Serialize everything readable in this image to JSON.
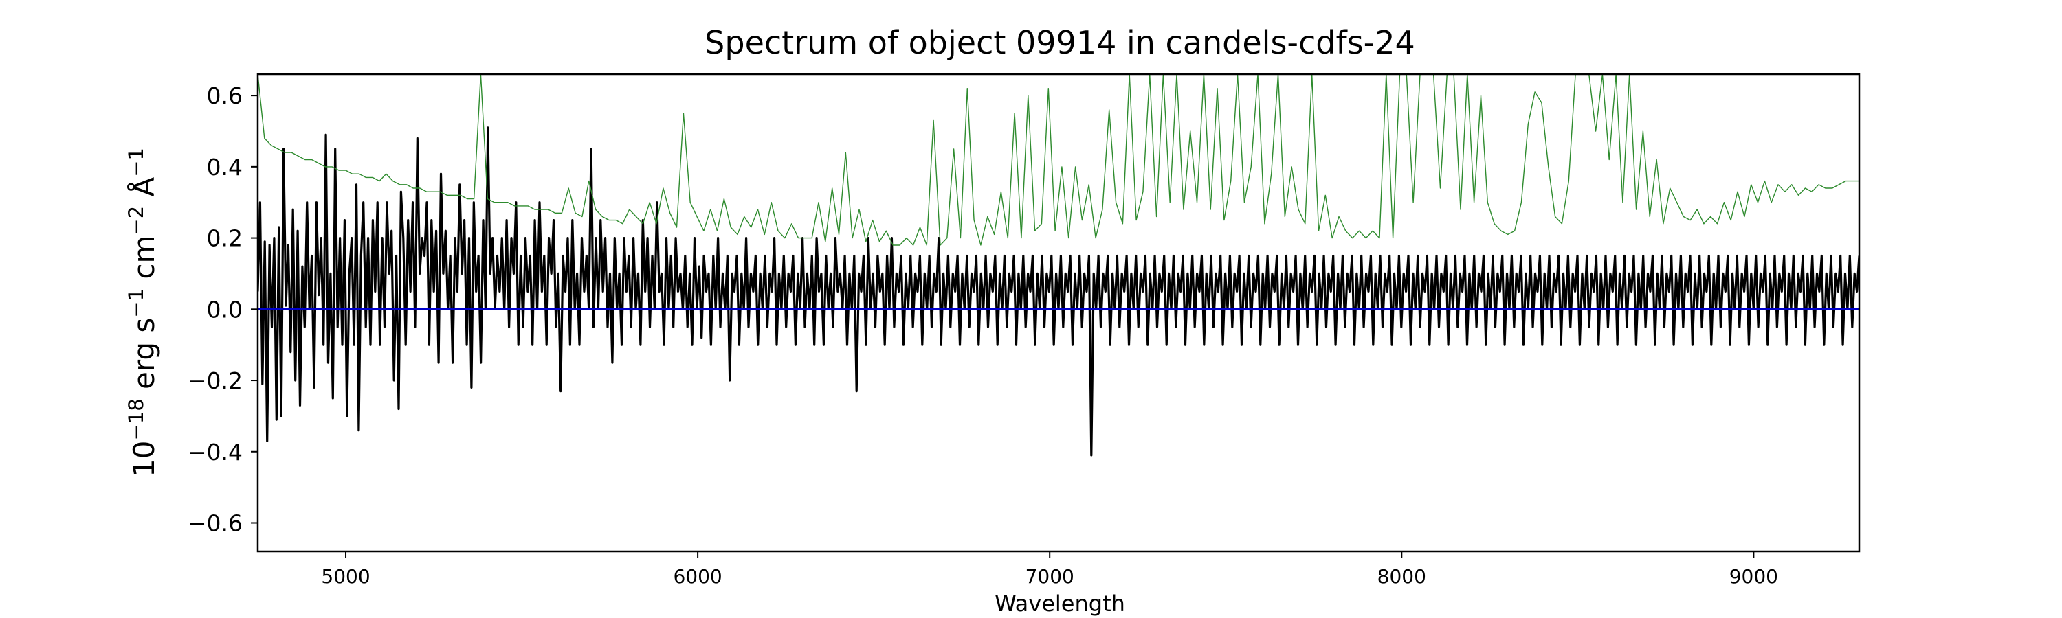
{
  "chart_data": {
    "type": "line",
    "title": "Spectrum of object 09914 in candels-cdfs-24",
    "xlabel": "Wavelength",
    "ylabel": {
      "base": "10",
      "base_exp": "−18",
      "erg": " erg s",
      "s_exp": "−1",
      "cm": " cm",
      "cm_exp": "−2",
      "ang": " Å",
      "ang_exp": "−1"
    },
    "xlim": [
      4750,
      9300
    ],
    "ylim": [
      -0.68,
      0.66
    ],
    "x_ticks": [
      {
        "value": 5000,
        "label": "5000"
      },
      {
        "value": 6000,
        "label": "6000"
      },
      {
        "value": 7000,
        "label": "7000"
      },
      {
        "value": 8000,
        "label": "8000"
      },
      {
        "value": 9000,
        "label": "9000"
      }
    ],
    "y_ticks": [
      {
        "value": 0.6,
        "label": "0.6"
      },
      {
        "value": 0.4,
        "label": "0.4"
      },
      {
        "value": 0.2,
        "label": "0.2"
      },
      {
        "value": 0.0,
        "label": "0.0"
      },
      {
        "value": -0.2,
        "label": "−0.2"
      },
      {
        "value": -0.4,
        "label": "−0.4"
      },
      {
        "value": -0.6,
        "label": "−0.6"
      }
    ],
    "grid": false,
    "series": [
      {
        "role": "flux",
        "color": "#000000",
        "x_start": 4750,
        "x_end": 9300,
        "points": 680,
        "y": [
          0.05,
          0.3,
          -0.21,
          0.19,
          -0.37,
          0.18,
          -0.05,
          0.2,
          -0.31,
          0.23,
          -0.3,
          0.45,
          0.01,
          0.18,
          -0.12,
          0.28,
          -0.2,
          0.22,
          -0.27,
          0.12,
          -0.05,
          0.3,
          0.0,
          0.15,
          -0.22,
          0.3,
          0.04,
          0.2,
          -0.1,
          0.49,
          -0.15,
          0.1,
          -0.25,
          0.45,
          -0.05,
          0.2,
          -0.1,
          0.25,
          -0.3,
          0.1,
          0.2,
          -0.1,
          0.35,
          -0.34,
          0.15,
          0.3,
          -0.05,
          0.2,
          -0.1,
          0.25,
          0.05,
          0.3,
          -0.1,
          0.2,
          -0.05,
          0.3,
          0.1,
          0.22,
          -0.2,
          0.15,
          -0.28,
          0.33,
          0.2,
          -0.1,
          0.25,
          0.05,
          0.3,
          -0.05,
          0.48,
          0.1,
          0.2,
          0.15,
          0.3,
          -0.1,
          0.25,
          0.05,
          0.22,
          -0.15,
          0.38,
          0.1,
          0.22,
          0.0,
          0.15,
          -0.15,
          0.2,
          0.05,
          0.35,
          0.1,
          0.25,
          -0.1,
          0.2,
          -0.22,
          0.3,
          0.05,
          0.15,
          -0.15,
          0.25,
          0.0,
          0.51,
          0.1,
          0.2,
          0.0,
          0.15,
          0.05,
          0.2,
          0.0,
          0.25,
          -0.05,
          0.2,
          0.1,
          0.3,
          -0.1,
          0.15,
          -0.05,
          0.2,
          0.05,
          0.15,
          -0.1,
          0.25,
          0.0,
          0.3,
          0.05,
          0.15,
          -0.1,
          0.2,
          0.1,
          0.25,
          -0.05,
          0.1,
          -0.23,
          0.15,
          0.05,
          0.2,
          -0.1,
          0.25,
          0.0,
          0.1,
          -0.1,
          0.2,
          0.05,
          0.15,
          0.0,
          0.45,
          -0.05,
          0.2,
          0.0,
          0.25,
          0.05,
          0.2,
          -0.05,
          0.1,
          -0.15,
          0.2,
          0.0,
          0.1,
          -0.1,
          0.2,
          0.05,
          0.15,
          -0.05,
          0.2,
          0.0,
          0.1,
          -0.1,
          0.25,
          0.05,
          0.2,
          -0.05,
          0.15,
          0.0,
          0.3,
          0.05,
          0.1,
          -0.1,
          0.2,
          0.0,
          0.15,
          -0.05,
          0.2,
          0.05,
          0.1,
          0.0,
          0.15,
          -0.05,
          0.1,
          -0.1,
          0.2,
          0.0,
          0.12,
          -0.08,
          0.15,
          0.05,
          0.1,
          -0.1,
          0.15,
          0.0,
          0.2,
          -0.05,
          0.1,
          0.0,
          0.15,
          -0.2,
          0.1,
          0.05,
          0.15,
          -0.1,
          0.1,
          0.0,
          0.2,
          -0.05,
          0.1,
          0.05,
          0.15,
          -0.1,
          0.1,
          0.0,
          0.15,
          -0.05,
          0.1,
          0.05,
          0.2,
          -0.1,
          0.1,
          0.0,
          0.15,
          -0.05,
          0.1,
          0.05,
          0.15,
          -0.1,
          0.1,
          0.0,
          0.2,
          -0.05,
          0.1,
          0.0,
          0.15,
          -0.1,
          0.2,
          0.05,
          0.1,
          -0.1,
          0.15,
          0.0,
          0.1,
          -0.05,
          0.2,
          0.05,
          0.1,
          0.0,
          0.15,
          -0.1,
          0.1,
          0.0,
          0.15,
          -0.23,
          0.1,
          0.05,
          0.15,
          -0.1,
          0.2,
          0.0,
          0.1,
          -0.05,
          0.15,
          0.05,
          0.1,
          -0.1,
          0.15,
          0.0,
          0.2,
          -0.05,
          0.1,
          0.05,
          0.15,
          -0.1,
          0.1,
          0.0,
          0.15,
          -0.05,
          0.1,
          0.05,
          0.15,
          -0.1,
          0.1,
          0.0,
          0.15,
          -0.05,
          0.1,
          0.05,
          0.2,
          -0.1,
          0.1,
          0.0,
          0.15,
          -0.05,
          0.1,
          0.05,
          0.15,
          -0.1,
          0.1,
          0.0,
          0.15,
          -0.05,
          0.1,
          0.05,
          0.15,
          -0.1,
          0.1,
          0.0,
          0.15,
          -0.05,
          0.1,
          0.05,
          0.15,
          -0.1,
          0.1,
          0.0,
          0.15,
          -0.05,
          0.1,
          0.05,
          0.15,
          -0.1,
          0.1,
          0.0,
          0.15,
          -0.05,
          0.1,
          0.05,
          0.15,
          -0.1,
          0.1,
          0.0,
          0.15,
          -0.05,
          0.1,
          0.05,
          0.15,
          -0.1,
          0.1,
          0.0,
          0.15,
          -0.05,
          0.1,
          0.05,
          0.15,
          -0.1,
          0.1,
          0.0,
          0.15,
          -0.05,
          0.1,
          0.05,
          0.15,
          -0.41,
          0.1,
          0.0,
          0.15,
          -0.05,
          0.1,
          0.05,
          0.15,
          -0.1,
          0.1,
          0.0,
          0.15,
          -0.05,
          0.1,
          0.05,
          0.15,
          -0.1,
          0.1,
          0.0,
          0.15,
          -0.05,
          0.1,
          0.05,
          0.15,
          -0.1,
          0.1,
          0.0,
          0.15,
          -0.05,
          0.1,
          0.05,
          0.15,
          -0.1,
          0.1,
          0.0,
          0.15,
          -0.05,
          0.1,
          0.05,
          0.15,
          -0.1,
          0.1,
          0.0,
          0.15,
          -0.05,
          0.1,
          0.05,
          0.15,
          -0.1,
          0.1,
          0.0,
          0.15,
          -0.05,
          0.1,
          0.05,
          0.15,
          -0.1,
          0.1,
          0.0,
          0.15,
          -0.05,
          0.1,
          0.05,
          0.15,
          -0.1,
          0.1,
          0.0,
          0.15,
          -0.05,
          0.1,
          0.05,
          0.15,
          -0.1,
          0.1,
          0.0,
          0.15,
          -0.05,
          0.1,
          0.05,
          0.15,
          -0.1,
          0.1,
          0.0,
          0.15,
          -0.05,
          0.1,
          0.05,
          0.15,
          -0.1,
          0.1,
          0.0,
          0.15,
          -0.05,
          0.1,
          0.05,
          0.15,
          -0.1,
          0.1,
          0.0,
          0.15,
          -0.05,
          0.1,
          0.05,
          0.15,
          -0.1,
          0.1,
          0.0,
          0.15,
          -0.05,
          0.1,
          0.05,
          0.15,
          -0.1,
          0.1,
          0.0,
          0.15,
          -0.05,
          0.1,
          0.05,
          0.15,
          -0.1,
          0.1,
          0.0,
          0.15,
          -0.05,
          0.1,
          0.05,
          0.15,
          -0.1,
          0.1,
          0.0,
          0.15,
          -0.05,
          0.1,
          0.05,
          0.15,
          -0.1,
          0.1,
          0.0,
          0.15,
          -0.05,
          0.1,
          0.05,
          0.15,
          -0.1,
          0.1,
          0.0,
          0.15,
          -0.05,
          0.1,
          0.05,
          0.15,
          -0.1,
          0.1,
          0.0,
          0.15,
          -0.05,
          0.1,
          0.05,
          0.15,
          -0.1,
          0.1,
          0.0,
          0.15,
          -0.05,
          0.1,
          0.05,
          0.15,
          -0.1,
          0.1,
          0.0,
          0.15,
          -0.05,
          0.1,
          0.05,
          0.15,
          -0.1,
          0.1,
          0.0,
          0.15,
          -0.05,
          0.1,
          0.05,
          0.15,
          -0.1,
          0.1,
          0.0,
          0.15,
          -0.05,
          0.1,
          0.05,
          0.15,
          -0.1,
          0.1,
          0.0,
          0.15,
          -0.05,
          0.1,
          0.05,
          0.15,
          -0.1,
          0.1,
          0.0,
          0.15,
          -0.05,
          0.1,
          0.05,
          0.15,
          -0.1,
          0.1,
          0.0,
          0.15,
          -0.05,
          0.1,
          0.05,
          0.15,
          -0.1,
          0.1,
          0.0,
          0.15,
          -0.05,
          0.1,
          0.05,
          0.15,
          -0.1,
          0.1,
          0.0,
          0.15,
          -0.05,
          0.1,
          0.05,
          0.15,
          -0.1,
          0.1,
          0.0,
          0.15,
          -0.05,
          0.1,
          0.05,
          0.15,
          -0.1,
          0.1,
          0.0,
          0.15,
          -0.05,
          0.1,
          0.05,
          0.15,
          -0.1,
          0.1,
          0.0,
          0.15,
          -0.05,
          0.1,
          0.05,
          0.15,
          -0.1,
          0.1,
          0.0,
          0.15,
          -0.05,
          0.1,
          0.05,
          0.15,
          -0.1,
          0.1,
          0.0,
          0.15,
          -0.05,
          0.1,
          0.05,
          0.15,
          -0.1,
          0.1,
          0.0,
          0.15,
          -0.05,
          0.1,
          0.05,
          0.15,
          -0.1,
          0.1,
          0.0,
          0.15,
          -0.05,
          0.1,
          0.05,
          0.15,
          -0.1,
          0.1,
          0.0,
          0.15,
          -0.05,
          0.1,
          0.05,
          0.15,
          -0.1,
          0.1,
          0.0,
          0.15,
          -0.05,
          0.1,
          0.05,
          0.15,
          -0.1,
          0.1,
          0.0,
          0.15,
          -0.05,
          0.1,
          0.05,
          0.15,
          -0.1,
          0.1,
          0.0,
          0.15,
          -0.05,
          0.1,
          0.05,
          0.15,
          -0.1,
          0.1,
          0.0,
          0.15,
          -0.05,
          0.1,
          0.05,
          0.15
        ]
      },
      {
        "role": "error",
        "color": "#2e8b2e",
        "x_start": 4750,
        "x_end": 9300,
        "points": 240,
        "y": [
          0.66,
          0.48,
          0.46,
          0.45,
          0.44,
          0.44,
          0.43,
          0.42,
          0.42,
          0.41,
          0.4,
          0.4,
          0.39,
          0.39,
          0.38,
          0.38,
          0.37,
          0.37,
          0.36,
          0.38,
          0.36,
          0.35,
          0.35,
          0.34,
          0.34,
          0.33,
          0.33,
          0.33,
          0.32,
          0.32,
          0.32,
          0.31,
          0.31,
          0.66,
          0.31,
          0.3,
          0.3,
          0.3,
          0.29,
          0.29,
          0.29,
          0.28,
          0.28,
          0.28,
          0.27,
          0.27,
          0.34,
          0.27,
          0.26,
          0.36,
          0.28,
          0.26,
          0.25,
          0.25,
          0.24,
          0.28,
          0.26,
          0.24,
          0.3,
          0.24,
          0.34,
          0.27,
          0.23,
          0.55,
          0.3,
          0.26,
          0.22,
          0.28,
          0.22,
          0.31,
          0.23,
          0.21,
          0.26,
          0.23,
          0.28,
          0.21,
          0.3,
          0.22,
          0.2,
          0.24,
          0.2,
          0.2,
          0.2,
          0.3,
          0.19,
          0.34,
          0.21,
          0.44,
          0.2,
          0.28,
          0.19,
          0.25,
          0.19,
          0.22,
          0.18,
          0.18,
          0.2,
          0.18,
          0.23,
          0.18,
          0.53,
          0.18,
          0.2,
          0.45,
          0.2,
          0.62,
          0.25,
          0.18,
          0.26,
          0.21,
          0.33,
          0.2,
          0.55,
          0.2,
          0.6,
          0.22,
          0.24,
          0.62,
          0.22,
          0.4,
          0.2,
          0.4,
          0.25,
          0.35,
          0.2,
          0.28,
          0.56,
          0.3,
          0.24,
          0.66,
          0.25,
          0.33,
          0.66,
          0.26,
          0.66,
          0.3,
          0.66,
          0.28,
          0.5,
          0.3,
          0.66,
          0.28,
          0.62,
          0.25,
          0.36,
          0.66,
          0.3,
          0.4,
          0.66,
          0.24,
          0.38,
          0.66,
          0.26,
          0.4,
          0.28,
          0.24,
          0.66,
          0.22,
          0.32,
          0.2,
          0.26,
          0.22,
          0.2,
          0.22,
          0.2,
          0.22,
          0.2,
          0.66,
          0.2,
          0.66,
          0.66,
          0.3,
          0.66,
          0.66,
          0.66,
          0.34,
          0.66,
          0.66,
          0.28,
          0.66,
          0.3,
          0.6,
          0.3,
          0.24,
          0.22,
          0.21,
          0.22,
          0.3,
          0.52,
          0.61,
          0.58,
          0.4,
          0.26,
          0.24,
          0.36,
          0.66,
          0.66,
          0.66,
          0.5,
          0.66,
          0.42,
          0.66,
          0.3,
          0.66,
          0.28,
          0.5,
          0.26,
          0.42,
          0.24,
          0.34,
          0.3,
          0.26,
          0.25,
          0.28,
          0.24,
          0.26,
          0.24,
          0.3,
          0.25,
          0.33,
          0.26,
          0.35,
          0.3,
          0.36,
          0.3,
          0.35,
          0.33,
          0.35,
          0.32,
          0.34,
          0.33,
          0.35,
          0.34,
          0.34,
          0.35,
          0.36,
          0.36,
          0.36
        ]
      },
      {
        "role": "zero",
        "color": "#0000cc",
        "x": [
          4750,
          9300
        ],
        "y": [
          0.0,
          0.0
        ]
      }
    ]
  }
}
